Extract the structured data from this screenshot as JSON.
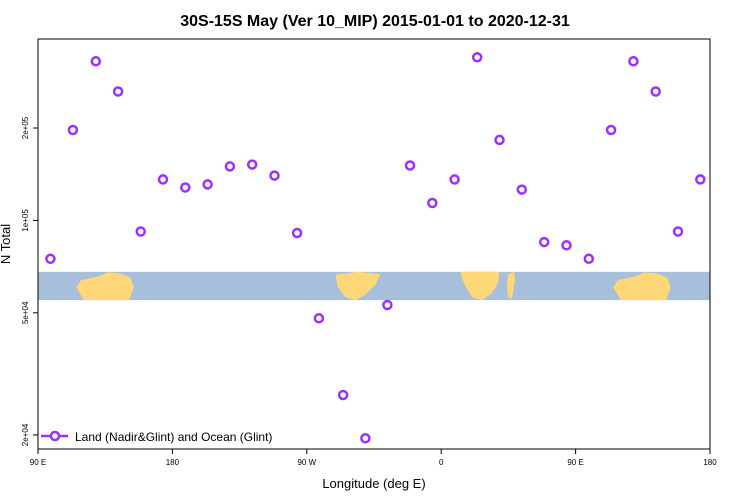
{
  "chart_data": {
    "type": "scatter",
    "title": "30S-15S May (Ver 10_MIP)   2015-01-01 to 2020-12-31",
    "xlabel": "Longitude (deg E)",
    "ylabel": "N Total",
    "x_scale": "linear",
    "y_scale": "log",
    "xlim": [
      90,
      340
    ],
    "ylim": [
      18000,
      390000
    ],
    "x_ticks": [
      {
        "value": 90,
        "label": "90 E"
      },
      {
        "value": 140,
        "label": "180"
      },
      {
        "value": 190,
        "label": "90 W"
      },
      {
        "value": 240,
        "label": "0"
      },
      {
        "value": 290,
        "label": "90 E"
      },
      {
        "value": 340,
        "label": "180"
      }
    ],
    "y_ticks": [
      {
        "value": 20000,
        "label": "2e+04"
      },
      {
        "value": 50000,
        "label": "5e+04"
      },
      {
        "value": 100000,
        "label": "1e+05"
      },
      {
        "value": 200000,
        "label": "2e+05"
      }
    ],
    "grid": false,
    "legend_position": "bottom-left",
    "series": [
      {
        "name": "Land (Nadir&Glint) and Ocean (Glint)",
        "color": "#9b30ff",
        "marker": "open-circle",
        "x": [
          94.6,
          103,
          111.5,
          119.8,
          128.2,
          136.5,
          144.8,
          153.1,
          161.4,
          169.7,
          178,
          186.4,
          194.5,
          203.5,
          211.8,
          220,
          228.4,
          236.7,
          245,
          253.4,
          261.7,
          270,
          278.3,
          286.6,
          294.9,
          303.2,
          311.5,
          319.8,
          328.1,
          336.4
        ],
        "y": [
          75000,
          197000,
          330000,
          263000,
          92000,
          136000,
          128000,
          131000,
          150000,
          152000,
          140000,
          91000,
          48000,
          27000,
          19500,
          53000,
          151000,
          114000,
          136000,
          340000,
          183000,
          126000,
          85000,
          83000,
          75000,
          197000,
          330000,
          263000,
          92000,
          136000
        ]
      }
    ],
    "background_map": {
      "band_y_range": [
        55000,
        68000
      ],
      "ocean_color": "#a8bfdc",
      "land_color": "#fdd778"
    }
  }
}
